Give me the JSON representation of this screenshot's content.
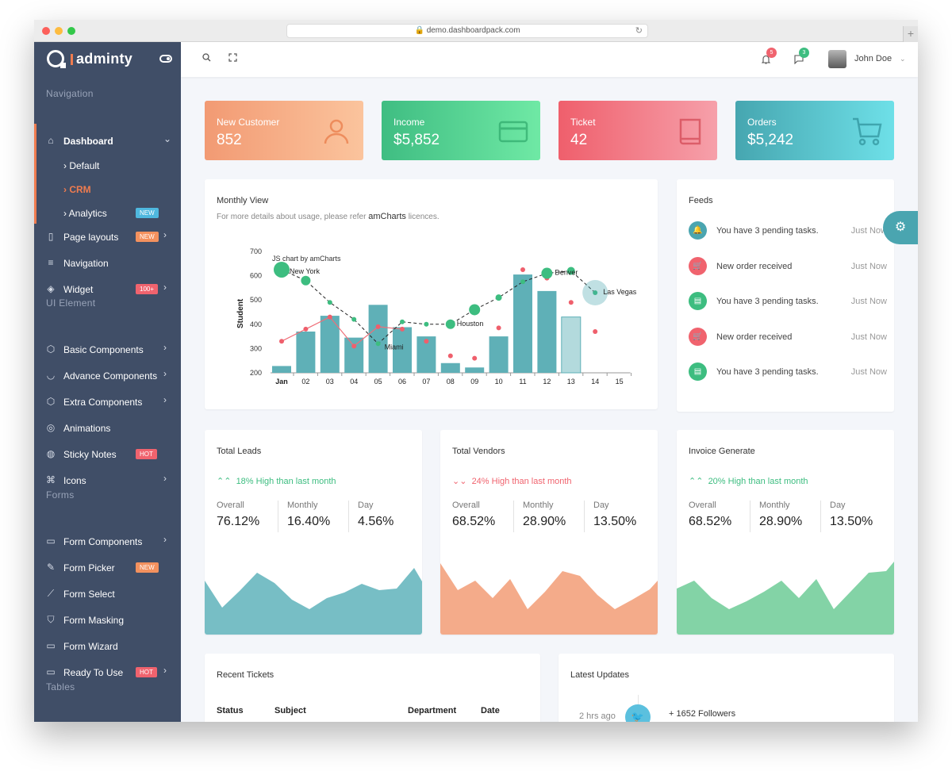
{
  "browser": {
    "url": "demo.dashboardpack.com"
  },
  "brand": {
    "name": "adminty"
  },
  "sidebar": {
    "sections": [
      "Navigation",
      "UI Element",
      "Forms",
      "Tables"
    ],
    "dashboard": "Dashboard",
    "sub": [
      "Default",
      "CRM",
      "Analytics"
    ],
    "analytics_badge": "NEW",
    "items": [
      {
        "label": "Page layouts",
        "badge": "NEW"
      },
      {
        "label": "Navigation"
      },
      {
        "label": "Widget",
        "badge": "100+"
      },
      {
        "label": "Basic Components"
      },
      {
        "label": "Advance Components"
      },
      {
        "label": "Extra Components"
      },
      {
        "label": "Animations"
      },
      {
        "label": "Sticky Notes",
        "badge": "HOT"
      },
      {
        "label": "Icons"
      },
      {
        "label": "Form Components"
      },
      {
        "label": "Form Picker",
        "badge": "NEW"
      },
      {
        "label": "Form Select"
      },
      {
        "label": "Form Masking"
      },
      {
        "label": "Form Wizard"
      },
      {
        "label": "Ready To Use",
        "badge": "HOT"
      }
    ]
  },
  "header": {
    "notifications": "5",
    "messages": "3",
    "user": "John Doe"
  },
  "stats": [
    {
      "title": "New Customer",
      "value": "852",
      "icon": "user-icon"
    },
    {
      "title": "Income",
      "value": "$5,852",
      "icon": "credit-card-icon"
    },
    {
      "title": "Ticket",
      "value": "42",
      "icon": "book-icon"
    },
    {
      "title": "Orders",
      "value": "$5,242",
      "icon": "cart-icon"
    }
  ],
  "monthly": {
    "title": "Monthly View",
    "subtitle_pre": "For more details about usage, please refer",
    "subtitle_link": "amCharts",
    "subtitle_post": "licences.",
    "credit": "JS chart by amCharts"
  },
  "chart_data": {
    "type": "bar",
    "categories": [
      "Jan",
      "02",
      "03",
      "04",
      "05",
      "06",
      "07",
      "08",
      "09",
      "10",
      "11",
      "12",
      "13",
      "14",
      "15"
    ],
    "ylabel": "Student",
    "ylim": [
      200,
      700
    ],
    "yticks": [
      200,
      300,
      400,
      500,
      600,
      700
    ],
    "series": [
      {
        "values": [
          228,
          370,
          435,
          345,
          480,
          388,
          350,
          240,
          222,
          350,
          605,
          537,
          430,
          null,
          null
        ]
      },
      {
        "values": [
          330,
          380,
          430,
          310,
          390,
          380,
          330,
          270,
          260,
          385,
          625,
          590,
          490,
          370,
          null
        ]
      },
      {
        "values": [
          625,
          580,
          490,
          420,
          320,
          410,
          400,
          400,
          460,
          510,
          575,
          610,
          620,
          530,
          null
        ]
      }
    ],
    "annotations": [
      "New York",
      "Miami",
      "Houston",
      "Denver",
      "Las Vegas"
    ]
  },
  "feeds": {
    "title": "Feeds",
    "items": [
      {
        "text": "You have 3 pending tasks.",
        "when": "Just Now",
        "icon": "bell-icon",
        "color": "#4aa5b0"
      },
      {
        "text": "New order received",
        "when": "Just Now",
        "icon": "cart-icon",
        "color": "#f0636e"
      },
      {
        "text": "You have 3 pending tasks.",
        "when": "Just Now",
        "icon": "file-icon",
        "color": "#3dbd80"
      },
      {
        "text": "New order received",
        "when": "Just Now",
        "icon": "cart-icon",
        "color": "#f0636e"
      },
      {
        "text": "You have 3 pending tasks.",
        "when": "Just Now",
        "icon": "file-icon",
        "color": "#3dbd80"
      }
    ]
  },
  "cards": [
    {
      "title": "Total Leads",
      "trend": "18% High than last month",
      "labels": [
        "Overall",
        "Monthly",
        "Day"
      ],
      "values": [
        "76.12%",
        "16.40%",
        "4.56%"
      ],
      "color": "#5fb3bb"
    },
    {
      "title": "Total Vendors",
      "trend": "24% High than last month",
      "labels": [
        "Overall",
        "Monthly",
        "Day"
      ],
      "values": [
        "68.52%",
        "28.90%",
        "13.50%"
      ],
      "color": "#f3a27d"
    },
    {
      "title": "Invoice Generate",
      "trend": "20% High than last month",
      "labels": [
        "Overall",
        "Monthly",
        "Day"
      ],
      "values": [
        "68.52%",
        "28.90%",
        "13.50%"
      ],
      "color": "#6dcb96"
    }
  ],
  "tickets": {
    "title": "Recent Tickets",
    "columns": [
      "Status",
      "Subject",
      "Department",
      "Date"
    ]
  },
  "updates": {
    "title": "Latest Updates",
    "time": "2 hrs ago",
    "text": "+ 1652 Followers"
  }
}
